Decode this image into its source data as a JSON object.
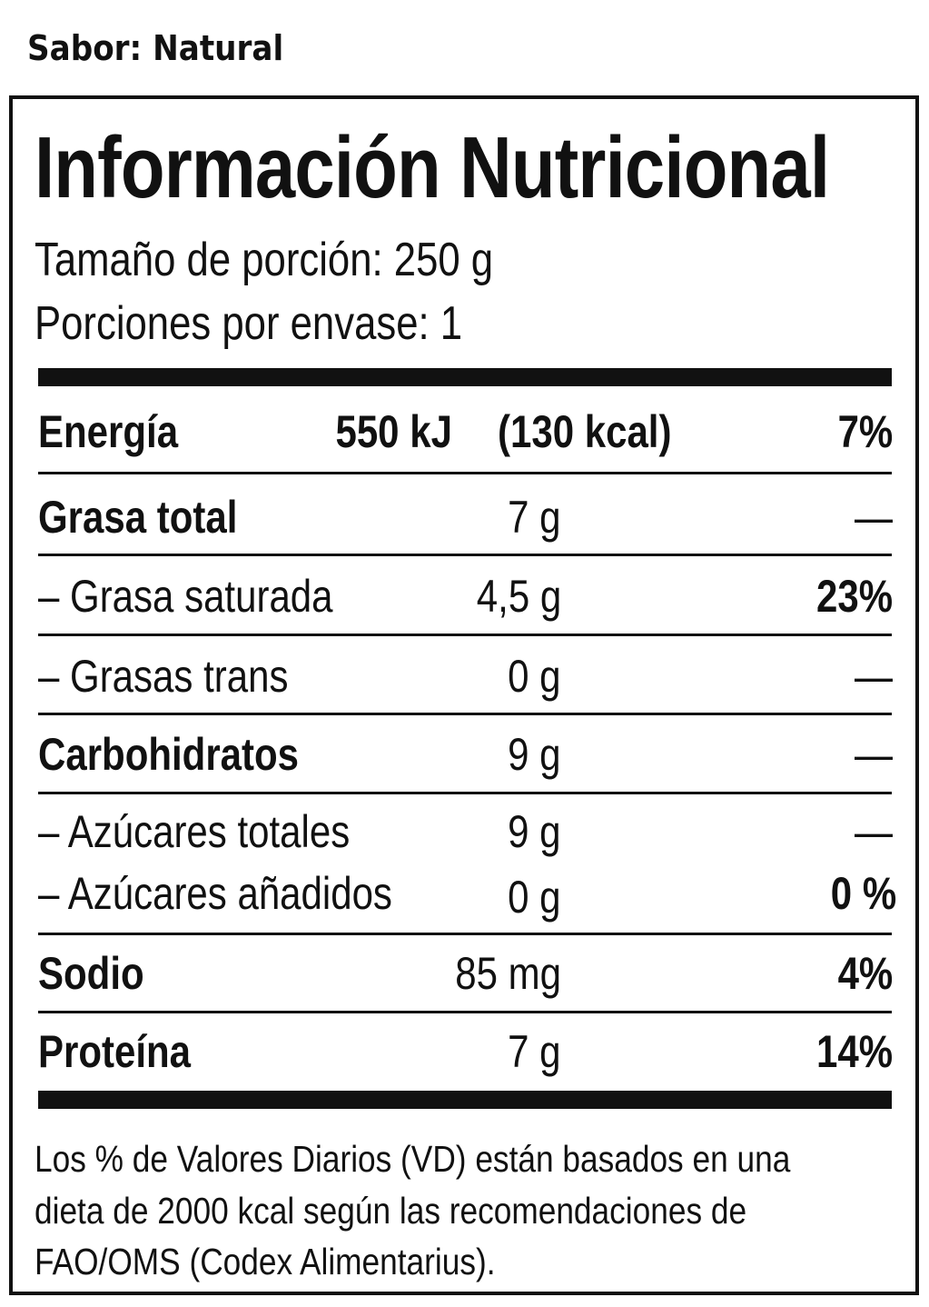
{
  "flavor": "Sabor: Natural",
  "title": "Información Nutricional",
  "serving_size": "Tamaño de porción: 250 g",
  "servings_per_container": "Porciones por envase: 1",
  "energy": {
    "label": "Energía",
    "kj": "550 kJ",
    "kcal": "(130 kcal)",
    "dv": "7%"
  },
  "rows": [
    {
      "label": "Grasa total",
      "amount": "7 g",
      "dv": "—"
    },
    {
      "label": "– Grasa saturada",
      "amount": "4,5 g",
      "dv": "23%"
    },
    {
      "label": "– Grasas trans",
      "amount": "0 g",
      "dv": "—"
    },
    {
      "label": "Carbohidratos",
      "amount": "9 g",
      "dv": "—"
    },
    {
      "label": "– Azúcares totales",
      "amount": "9 g",
      "dv": "—"
    },
    {
      "label": "– Azúcares añadidos",
      "amount": "0 g",
      "dv": "0 %"
    },
    {
      "label": "Sodio",
      "amount": "85 mg",
      "dv": "4%"
    },
    {
      "label": "Proteína",
      "amount": "7 g",
      "dv": "14%"
    }
  ],
  "footnote": [
    "Los % de Valores Diarios (VD) están basados en una",
    "dieta de 2000 kcal según las recomendaciones de",
    "FAO/OMS (Codex Alimentarius)."
  ]
}
